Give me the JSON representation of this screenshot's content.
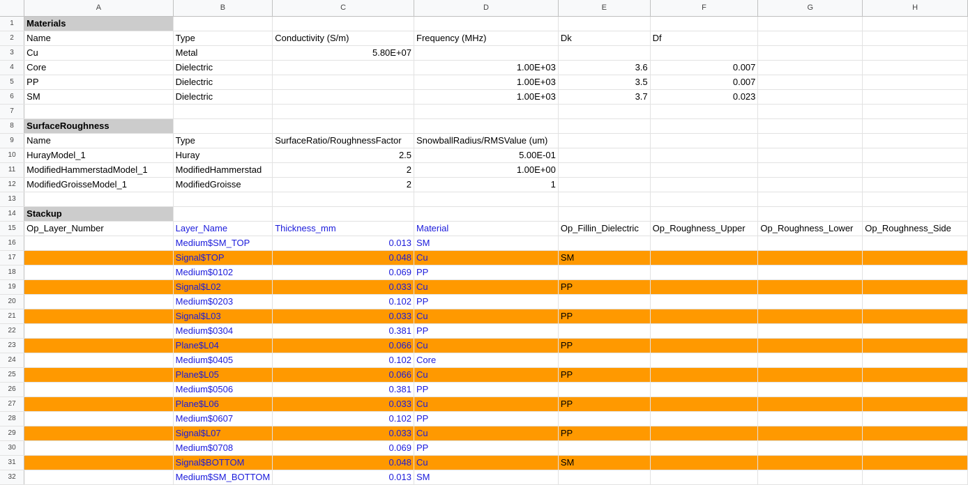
{
  "columns": [
    "A",
    "B",
    "C",
    "D",
    "E",
    "F",
    "G",
    "H"
  ],
  "colors": {
    "highlight": "#ff9900",
    "section_header": "#cccccc",
    "link_text": "#1a1adb"
  },
  "rows": [
    {
      "n": "1",
      "cells": [
        {
          "v": "Materials",
          "s": "hdr"
        },
        "",
        "",
        "",
        "",
        "",
        "",
        ""
      ]
    },
    {
      "n": "2",
      "cells": [
        "Name",
        "Type",
        "Conductivity (S/m)",
        "Frequency (MHz)",
        "Dk",
        "Df",
        "",
        ""
      ]
    },
    {
      "n": "3",
      "cells": [
        "Cu",
        "Metal",
        {
          "v": "5.80E+07",
          "s": "num"
        },
        "",
        "",
        "",
        "",
        ""
      ]
    },
    {
      "n": "4",
      "cells": [
        "Core",
        "Dielectric",
        "",
        {
          "v": "1.00E+03",
          "s": "num"
        },
        {
          "v": "3.6",
          "s": "num"
        },
        {
          "v": "0.007",
          "s": "num"
        },
        "",
        ""
      ]
    },
    {
      "n": "5",
      "cells": [
        "PP",
        "Dielectric",
        "",
        {
          "v": "1.00E+03",
          "s": "num"
        },
        {
          "v": "3.5",
          "s": "num"
        },
        {
          "v": "0.007",
          "s": "num"
        },
        "",
        ""
      ]
    },
    {
      "n": "6",
      "cells": [
        "SM",
        "Dielectric",
        "",
        {
          "v": "1.00E+03",
          "s": "num"
        },
        {
          "v": "3.7",
          "s": "num"
        },
        {
          "v": "0.023",
          "s": "num"
        },
        "",
        ""
      ]
    },
    {
      "n": "7",
      "cells": [
        "",
        "",
        "",
        "",
        "",
        "",
        "",
        ""
      ]
    },
    {
      "n": "8",
      "cells": [
        {
          "v": "SurfaceRoughness",
          "s": "hdr"
        },
        "",
        "",
        "",
        "",
        "",
        "",
        ""
      ]
    },
    {
      "n": "9",
      "cells": [
        "Name",
        "Type",
        "SurfaceRatio/RoughnessFactor",
        "SnowballRadius/RMSValue (um)",
        "",
        "",
        "",
        ""
      ]
    },
    {
      "n": "10",
      "cells": [
        "HurayModel_1",
        "Huray",
        {
          "v": "2.5",
          "s": "num"
        },
        {
          "v": "5.00E-01",
          "s": "num"
        },
        "",
        "",
        "",
        ""
      ]
    },
    {
      "n": "11",
      "cells": [
        "ModifiedHammerstadModel_1",
        "ModifiedHammerstad",
        {
          "v": "2",
          "s": "num"
        },
        {
          "v": "1.00E+00",
          "s": "num"
        },
        "",
        "",
        "",
        ""
      ]
    },
    {
      "n": "12",
      "cells": [
        "ModifiedGroisseModel_1",
        "ModifiedGroisse",
        {
          "v": "2",
          "s": "num"
        },
        {
          "v": "1",
          "s": "num"
        },
        "",
        "",
        "",
        ""
      ]
    },
    {
      "n": "13",
      "cells": [
        "",
        "",
        "",
        "",
        "",
        "",
        "",
        ""
      ]
    },
    {
      "n": "14",
      "cells": [
        {
          "v": "Stackup",
          "s": "hdr"
        },
        "",
        "",
        "",
        "",
        "",
        "",
        ""
      ]
    },
    {
      "n": "15",
      "cells": [
        "Op_Layer_Number",
        {
          "v": "Layer_Name",
          "s": "blue"
        },
        {
          "v": "Thickness_mm",
          "s": "blue"
        },
        {
          "v": "Material",
          "s": "blue"
        },
        "Op_Fillin_Dielectric",
        "Op_Roughness_Upper",
        "Op_Roughness_Lower",
        "Op_Roughness_Side"
      ]
    },
    {
      "n": "16",
      "cells": [
        "",
        {
          "v": "Medium$SM_TOP",
          "s": "blue"
        },
        {
          "v": "0.013",
          "s": "num blue"
        },
        {
          "v": "SM",
          "s": "blue"
        },
        "",
        "",
        "",
        ""
      ]
    },
    {
      "n": "17",
      "hl": true,
      "cells": [
        "",
        {
          "v": "Signal$TOP",
          "s": "blue"
        },
        {
          "v": "0.048",
          "s": "num blue"
        },
        {
          "v": "Cu",
          "s": "blue"
        },
        "SM",
        "",
        "",
        ""
      ]
    },
    {
      "n": "18",
      "cells": [
        "",
        {
          "v": "Medium$0102",
          "s": "blue"
        },
        {
          "v": "0.069",
          "s": "num blue"
        },
        {
          "v": "PP",
          "s": "blue"
        },
        "",
        "",
        "",
        ""
      ]
    },
    {
      "n": "19",
      "hl": true,
      "cells": [
        "",
        {
          "v": "Signal$L02",
          "s": "blue"
        },
        {
          "v": "0.033",
          "s": "num blue"
        },
        {
          "v": "Cu",
          "s": "blue"
        },
        "PP",
        "",
        "",
        ""
      ]
    },
    {
      "n": "20",
      "cells": [
        "",
        {
          "v": "Medium$0203",
          "s": "blue"
        },
        {
          "v": "0.102",
          "s": "num blue"
        },
        {
          "v": "PP",
          "s": "blue"
        },
        "",
        "",
        "",
        ""
      ]
    },
    {
      "n": "21",
      "hl": true,
      "cells": [
        "",
        {
          "v": "Signal$L03",
          "s": "blue"
        },
        {
          "v": "0.033",
          "s": "num blue"
        },
        {
          "v": "Cu",
          "s": "blue"
        },
        "PP",
        "",
        "",
        ""
      ]
    },
    {
      "n": "22",
      "cells": [
        "",
        {
          "v": "Medium$0304",
          "s": "blue"
        },
        {
          "v": "0.381",
          "s": "num blue"
        },
        {
          "v": "PP",
          "s": "blue"
        },
        "",
        "",
        "",
        ""
      ]
    },
    {
      "n": "23",
      "hl": true,
      "cells": [
        "",
        {
          "v": "Plane$L04",
          "s": "blue"
        },
        {
          "v": "0.066",
          "s": "num blue"
        },
        {
          "v": "Cu",
          "s": "blue"
        },
        "PP",
        "",
        "",
        ""
      ]
    },
    {
      "n": "24",
      "cells": [
        "",
        {
          "v": "Medium$0405",
          "s": "blue"
        },
        {
          "v": "0.102",
          "s": "num blue"
        },
        {
          "v": "Core",
          "s": "blue"
        },
        "",
        "",
        "",
        ""
      ]
    },
    {
      "n": "25",
      "hl": true,
      "cells": [
        "",
        {
          "v": "Plane$L05",
          "s": "blue"
        },
        {
          "v": "0.066",
          "s": "num blue"
        },
        {
          "v": "Cu",
          "s": "blue"
        },
        "PP",
        "",
        "",
        ""
      ]
    },
    {
      "n": "26",
      "cells": [
        "",
        {
          "v": "Medium$0506",
          "s": "blue"
        },
        {
          "v": "0.381",
          "s": "num blue"
        },
        {
          "v": "PP",
          "s": "blue"
        },
        "",
        "",
        "",
        ""
      ]
    },
    {
      "n": "27",
      "hl": true,
      "cells": [
        "",
        {
          "v": "Plane$L06",
          "s": "blue"
        },
        {
          "v": "0.033",
          "s": "num blue"
        },
        {
          "v": "Cu",
          "s": "blue"
        },
        "PP",
        "",
        "",
        ""
      ]
    },
    {
      "n": "28",
      "cells": [
        "",
        {
          "v": "Medium$0607",
          "s": "blue"
        },
        {
          "v": "0.102",
          "s": "num blue"
        },
        {
          "v": "PP",
          "s": "blue"
        },
        "",
        "",
        "",
        ""
      ]
    },
    {
      "n": "29",
      "hl": true,
      "cells": [
        "",
        {
          "v": "Signal$L07",
          "s": "blue"
        },
        {
          "v": "0.033",
          "s": "num blue"
        },
        {
          "v": "Cu",
          "s": "blue"
        },
        "PP",
        "",
        "",
        ""
      ]
    },
    {
      "n": "30",
      "cells": [
        "",
        {
          "v": "Medium$0708",
          "s": "blue"
        },
        {
          "v": "0.069",
          "s": "num blue"
        },
        {
          "v": "PP",
          "s": "blue"
        },
        "",
        "",
        "",
        ""
      ]
    },
    {
      "n": "31",
      "hl": true,
      "cells": [
        "",
        {
          "v": "Signal$BOTTOM",
          "s": "blue"
        },
        {
          "v": "0.048",
          "s": "num blue"
        },
        {
          "v": "Cu",
          "s": "blue"
        },
        "SM",
        "",
        "",
        ""
      ]
    },
    {
      "n": "32",
      "cells": [
        "",
        {
          "v": "Medium$SM_BOTTOM",
          "s": "blue"
        },
        {
          "v": "0.013",
          "s": "num blue"
        },
        {
          "v": "SM",
          "s": "blue"
        },
        "",
        "",
        "",
        ""
      ]
    }
  ]
}
